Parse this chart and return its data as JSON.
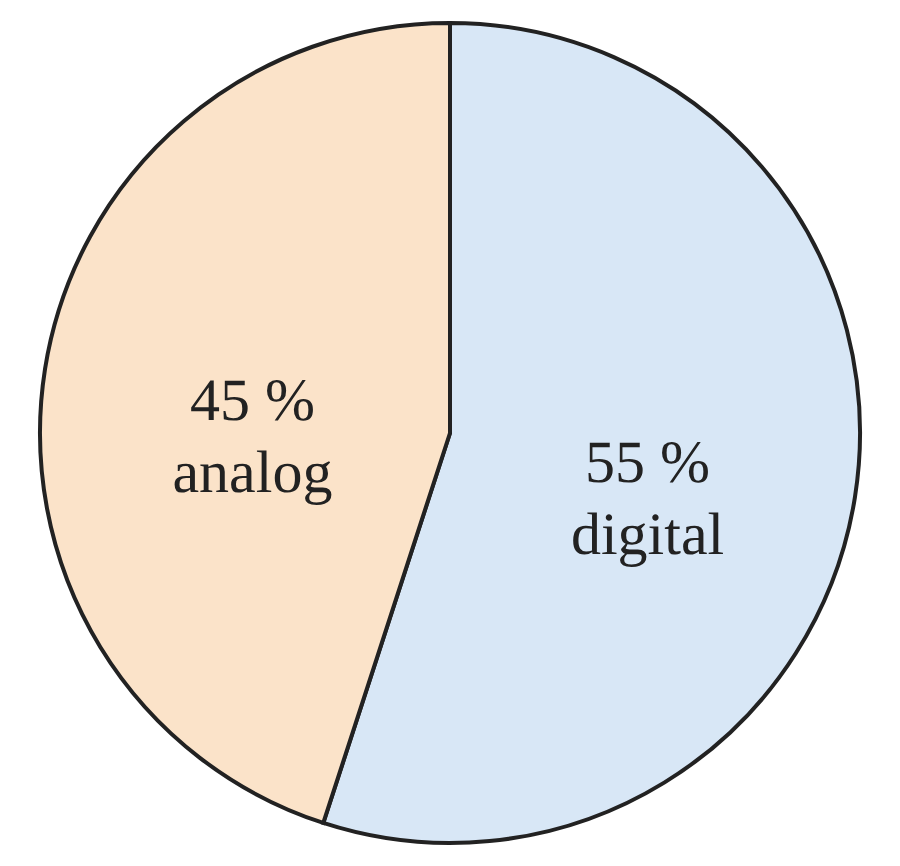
{
  "chart_data": {
    "type": "pie",
    "categories": [
      "digital",
      "analog"
    ],
    "values": [
      55,
      45
    ],
    "colors": [
      "#d8e7f6",
      "#fbe3c9"
    ],
    "value_labels": [
      "55 %",
      "45 %"
    ]
  }
}
